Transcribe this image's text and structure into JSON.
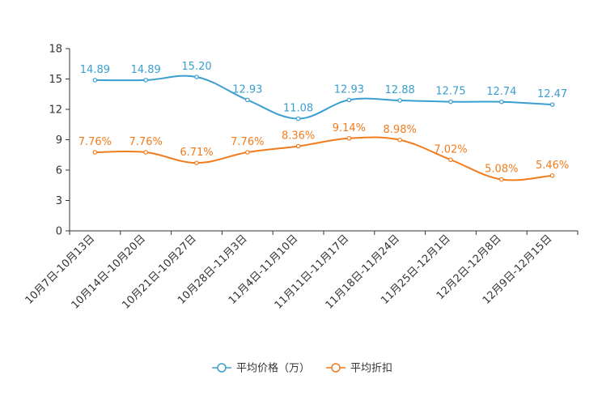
{
  "chart_data": {
    "type": "line",
    "categories": [
      "10月7日-10月13日",
      "10月14日-10月20日",
      "10月21日-10月27日",
      "10月28日-11月3日",
      "11月4日-11月10日",
      "11月11日-11月17日",
      "11月18日-11月24日",
      "11月25日-12月1日",
      "12月2日-12月8日",
      "12月9日-12月15日"
    ],
    "ylim": [
      0,
      18
    ],
    "yticks": [
      0,
      3,
      6,
      9,
      12,
      15,
      18
    ],
    "series": [
      {
        "name": "平均价格（万）",
        "color": "#3a9fd0",
        "values": [
          14.89,
          14.89,
          15.2,
          12.93,
          11.08,
          12.93,
          12.88,
          12.75,
          12.74,
          12.47
        ],
        "labels": [
          "14.89",
          "14.89",
          "15.20",
          "12.93",
          "11.08",
          "12.93",
          "12.88",
          "12.75",
          "12.74",
          "12.47"
        ]
      },
      {
        "name": "平均折扣",
        "color": "#f07c1e",
        "values": [
          7.76,
          7.76,
          6.71,
          7.76,
          8.36,
          9.14,
          8.98,
          7.02,
          5.08,
          5.46
        ],
        "labels": [
          "7.76%",
          "7.76%",
          "6.71%",
          "7.76%",
          "8.36%",
          "9.14%",
          "8.98%",
          "7.02%",
          "5.08%",
          "5.46%"
        ]
      }
    ],
    "legend_position": "bottom-center"
  }
}
